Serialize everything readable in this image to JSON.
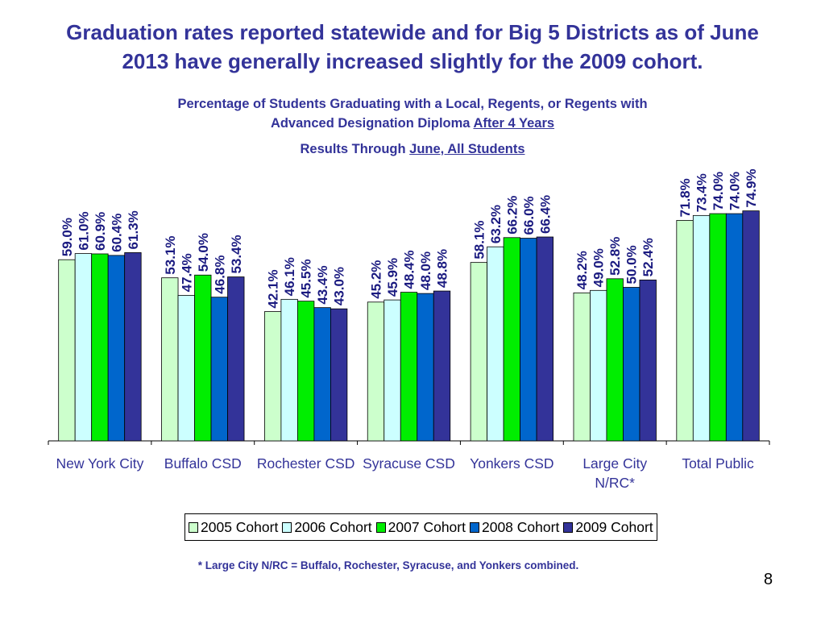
{
  "slide": {
    "title_line1": "Graduation rates reported statewide and for Big 5 Districts as of June",
    "title_line2": "2013 have generally increased slightly for the 2009 cohort.",
    "subtitle_line1": "Percentage of Students Graduating with a Local, Regents, or Regents with",
    "subtitle_line2_prefix": "Advanced Designation Diploma ",
    "subtitle_line2_link": "After 4 Years",
    "results_prefix": "Results Through ",
    "results_link": "June, All Students",
    "footnote": "* Large City N/RC = Buffalo, Rochester, Syracuse, and Yonkers combined.",
    "page_number": "8"
  },
  "chart_data": {
    "type": "bar",
    "title": "Percentage of Students Graduating with a Local, Regents, or Regents with Advanced Designation Diploma After 4 Years",
    "xlabel": "",
    "ylabel": "",
    "ylim": [
      0,
      100
    ],
    "grid": false,
    "legend_position": "bottom",
    "categories": [
      "New York City",
      "Buffalo CSD",
      "Rochester CSD",
      "Syracuse CSD",
      "Yonkers CSD",
      "Large City N/RC*",
      "Total Public"
    ],
    "series": [
      {
        "name": "2005 Cohort",
        "color": "#CCFFCC",
        "values": [
          59.0,
          53.1,
          42.1,
          45.2,
          58.1,
          48.2,
          71.8
        ]
      },
      {
        "name": "2006 Cohort",
        "color": "#CCFFFF",
        "values": [
          61.0,
          47.4,
          46.1,
          45.9,
          63.2,
          49.0,
          73.4
        ]
      },
      {
        "name": "2007 Cohort",
        "color": "#00EE00",
        "values": [
          60.9,
          54.0,
          45.5,
          48.4,
          66.2,
          52.8,
          74.0
        ]
      },
      {
        "name": "2008 Cohort",
        "color": "#0066CC",
        "values": [
          60.4,
          46.8,
          43.4,
          48.0,
          66.0,
          50.0,
          74.0
        ]
      },
      {
        "name": "2009 Cohort",
        "color": "#333399",
        "values": [
          61.3,
          53.4,
          43.0,
          48.8,
          66.4,
          52.4,
          74.9
        ]
      }
    ],
    "value_label_suffix": "%",
    "label_color": "#1A1A80"
  }
}
